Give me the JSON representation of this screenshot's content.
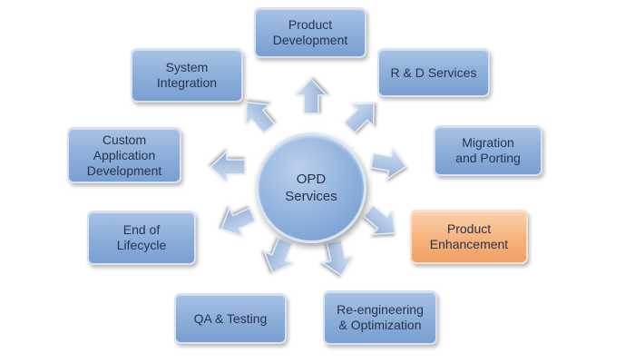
{
  "center": {
    "label": "OPD\nServices"
  },
  "services": [
    {
      "id": "product-development",
      "label": "Product\nDevelopment"
    },
    {
      "id": "rd-services",
      "label": "R & D Services"
    },
    {
      "id": "migration-porting",
      "label": "Migration\nand Porting"
    },
    {
      "id": "product-enhancement",
      "label": "Product\nEnhancement",
      "highlighted": true
    },
    {
      "id": "reengineering-optimization",
      "label": "Re-engineering\n& Optimization"
    },
    {
      "id": "qa-testing",
      "label": "QA & Testing"
    },
    {
      "id": "end-of-lifecycle",
      "label": "End of\nLifecycle"
    },
    {
      "id": "custom-app-development",
      "label": "Custom\nApplication\nDevelopment"
    },
    {
      "id": "system-integration",
      "label": "System\nIntegration"
    }
  ],
  "colors": {
    "box_fill": "#8badd9",
    "highlight_fill": "#f6b27c",
    "arrow_fill": "#a3bde0",
    "text": "#26354d"
  }
}
